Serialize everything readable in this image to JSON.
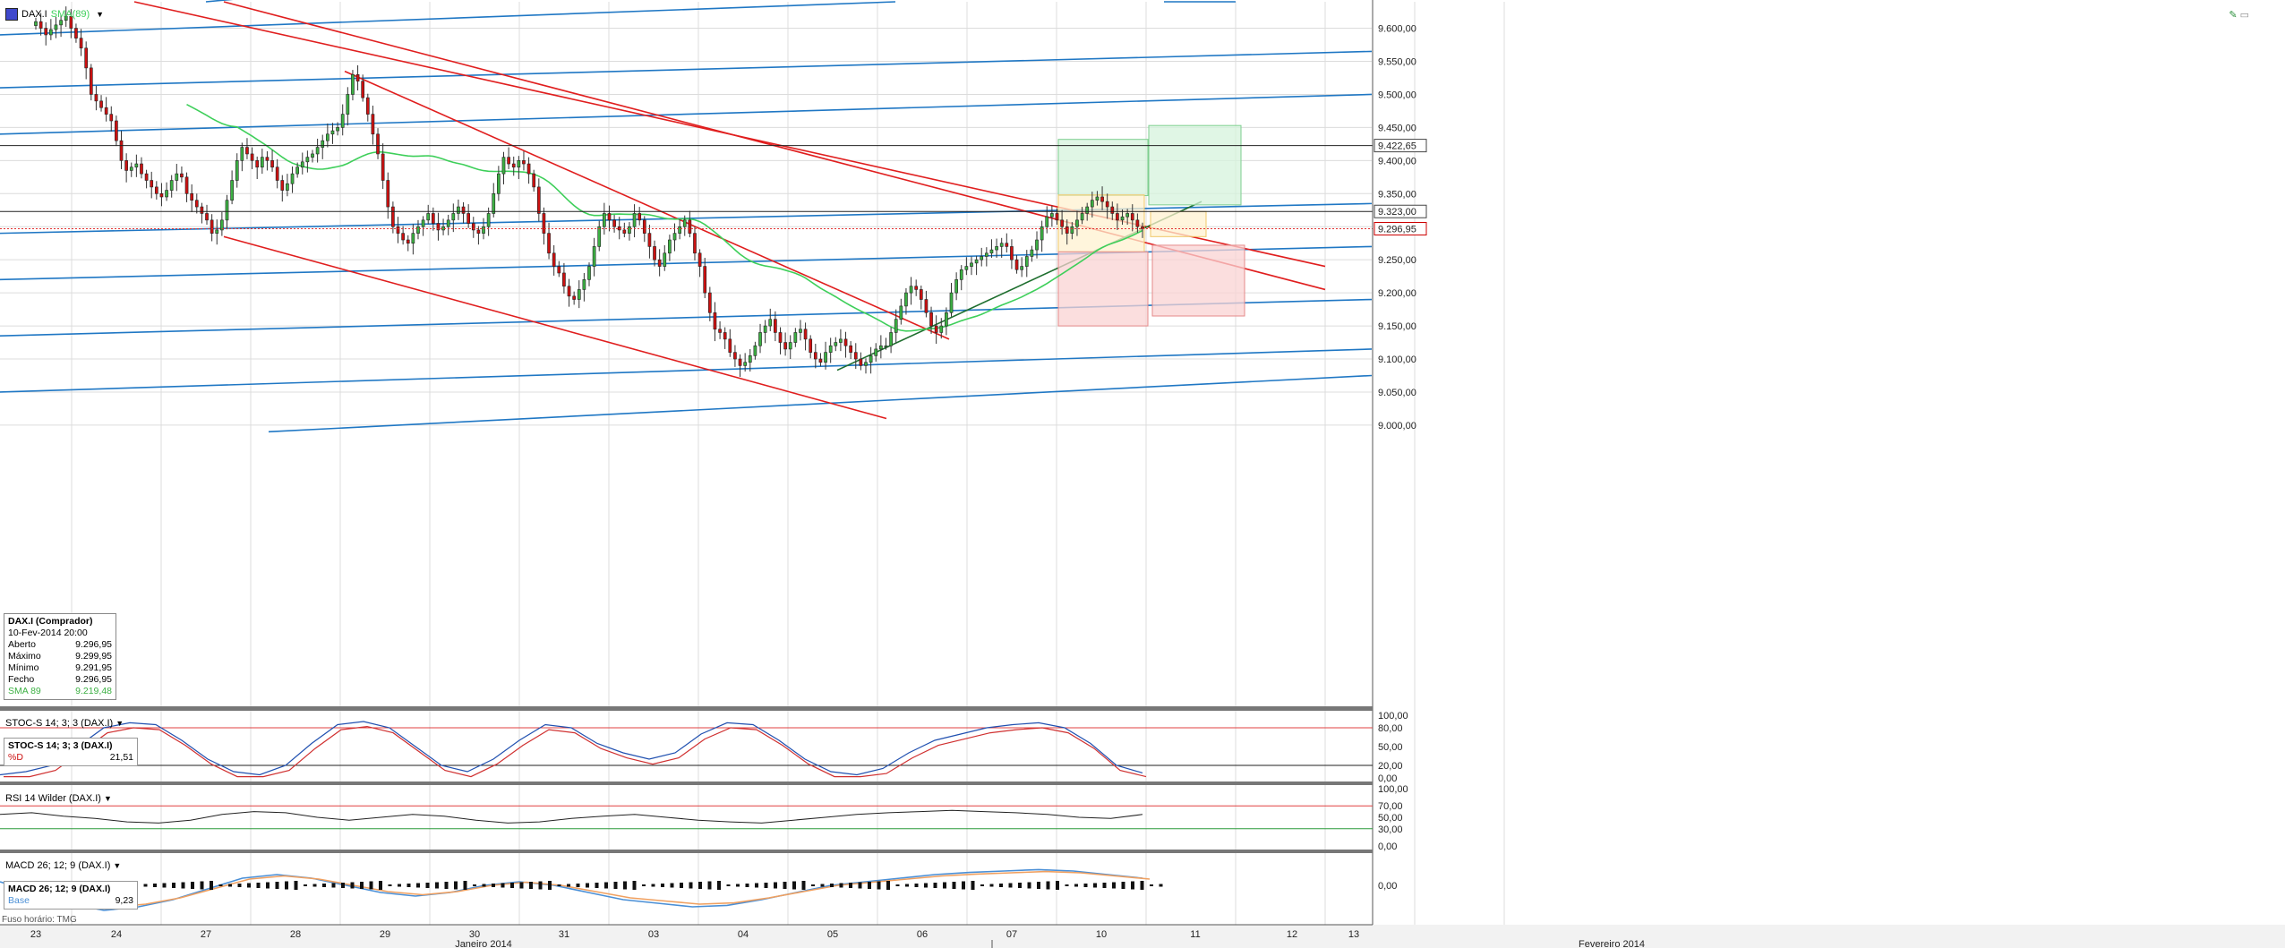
{
  "symbol": "DAX.I",
  "sma_label": "SMA(89)",
  "info_box": {
    "title": "DAX.I (Comprador)",
    "datetime": "10-Fev-2014 20:00",
    "rows": [
      {
        "label": "Aberto",
        "value": "9.296,95"
      },
      {
        "label": "Máximo",
        "value": "9.299,95"
      },
      {
        "label": "Mínimo",
        "value": "9.291,95"
      },
      {
        "label": "Fecho",
        "value": "9.296,95"
      },
      {
        "label": "SMA 89",
        "value": "9.219,48"
      }
    ]
  },
  "price_axis": {
    "ticks": [
      "9.600,00",
      "9.550,00",
      "9.500,00",
      "9.450,00",
      "9.400,00",
      "9.350,00",
      "9.300,00",
      "9.250,00",
      "9.200,00",
      "9.150,00",
      "9.100,00",
      "9.050,00",
      "9.000,00"
    ],
    "tick_values": [
      9600,
      9550,
      9500,
      9450,
      9400,
      9350,
      9300,
      9250,
      9200,
      9150,
      9100,
      9050,
      9000
    ],
    "marked": [
      {
        "label": "9.422,65",
        "value": 9422.65,
        "style": "black"
      },
      {
        "label": "9.323,00",
        "value": 9323.0,
        "style": "black"
      },
      {
        "label": "9.296,95",
        "value": 9296.95,
        "style": "red-dotted"
      }
    ]
  },
  "date_axis": {
    "day_labels": [
      "23",
      "24",
      "27",
      "28",
      "29",
      "30",
      "31",
      "03",
      "04",
      "05",
      "06",
      "07",
      "10",
      "11",
      "12",
      "13"
    ],
    "month_labels": [
      "Janeiro 2014",
      "Fevereiro 2014"
    ]
  },
  "stoc": {
    "title": "STOC-S 14; 3; 3 (DAX.I)",
    "legend_title": "STOC-S 14; 3; 3 (DAX.I)",
    "legend_row_label": "%D",
    "legend_row_value": "21,51",
    "axis_ticks": [
      "100,00",
      "80,00",
      "50,00",
      "20,00",
      "0,00"
    ],
    "levels": [
      80,
      20
    ]
  },
  "rsi": {
    "title": "RSI 14 Wilder (DAX.I)",
    "axis_ticks": [
      "100,00",
      "70,00",
      "50,00",
      "30,00",
      "0,00"
    ],
    "levels": [
      70,
      30
    ]
  },
  "macd": {
    "title": "MACD 26; 12; 9 (DAX.I)",
    "legend_title": "MACD 26; 12; 9 (DAX.I)",
    "legend_row_label": "Base",
    "legend_row_value": "9,23",
    "axis_ticks": [
      "0,00"
    ]
  },
  "footer": "Fuso horário: TMG",
  "colors": {
    "up": "#3cb043",
    "down": "#cc1111",
    "channel_blue": "#1f77c4",
    "channel_red": "#e01e1e",
    "sma": "#3ecf5a",
    "trend_green": "#1e6e2e",
    "grid": "#dcdcdc"
  },
  "chart_data": {
    "type": "candlestick",
    "timeframe": "hourly",
    "ylim": [
      8985,
      9640
    ],
    "trading_days": [
      "23",
      "24",
      "27",
      "28",
      "29",
      "30",
      "31",
      "03",
      "04",
      "05",
      "06",
      "07",
      "10"
    ],
    "future_days": [
      "11",
      "12",
      "13"
    ],
    "closes": [
      9610,
      9600,
      9590,
      9598,
      9605,
      9612,
      9618,
      9600,
      9585,
      9570,
      9540,
      9500,
      9490,
      9480,
      9470,
      9460,
      9430,
      9400,
      9385,
      9390,
      9395,
      9380,
      9370,
      9360,
      9350,
      9345,
      9355,
      9370,
      9380,
      9375,
      9350,
      9340,
      9330,
      9320,
      9310,
      9290,
      9295,
      9310,
      9340,
      9370,
      9400,
      9420,
      9410,
      9400,
      9390,
      9405,
      9400,
      9390,
      9370,
      9355,
      9365,
      9380,
      9390,
      9398,
      9405,
      9410,
      9420,
      9430,
      9440,
      9445,
      9450,
      9470,
      9500,
      9530,
      9520,
      9495,
      9470,
      9440,
      9410,
      9370,
      9330,
      9300,
      9290,
      9280,
      9275,
      9290,
      9300,
      9310,
      9320,
      9305,
      9295,
      9300,
      9310,
      9320,
      9330,
      9320,
      9305,
      9295,
      9290,
      9300,
      9320,
      9350,
      9380,
      9405,
      9395,
      9390,
      9400,
      9395,
      9380,
      9360,
      9320,
      9290,
      9260,
      9240,
      9230,
      9210,
      9195,
      9190,
      9205,
      9220,
      9240,
      9270,
      9300,
      9320,
      9310,
      9300,
      9295,
      9290,
      9300,
      9320,
      9310,
      9290,
      9270,
      9250,
      9240,
      9260,
      9280,
      9290,
      9300,
      9310,
      9290,
      9260,
      9240,
      9200,
      9170,
      9145,
      9140,
      9130,
      9110,
      9100,
      9090,
      9095,
      9105,
      9120,
      9140,
      9150,
      9160,
      9140,
      9125,
      9115,
      9125,
      9140,
      9145,
      9130,
      9110,
      9100,
      9095,
      9110,
      9120,
      9125,
      9130,
      9120,
      9110,
      9100,
      9090,
      9095,
      9105,
      9115,
      9120,
      9120,
      9140,
      9160,
      9180,
      9200,
      9210,
      9205,
      9190,
      9170,
      9150,
      9140,
      9150,
      9170,
      9200,
      9220,
      9235,
      9240,
      9245,
      9250,
      9255,
      9260,
      9265,
      9270,
      9275,
      9270,
      9250,
      9235,
      9240,
      9255,
      9265,
      9280,
      9300,
      9315,
      9320,
      9310,
      9300,
      9290,
      9300,
      9310,
      9320,
      9330,
      9340,
      9345,
      9338,
      9330,
      9320,
      9310,
      9315,
      9320,
      9310,
      9300,
      9296.95
    ]
  }
}
